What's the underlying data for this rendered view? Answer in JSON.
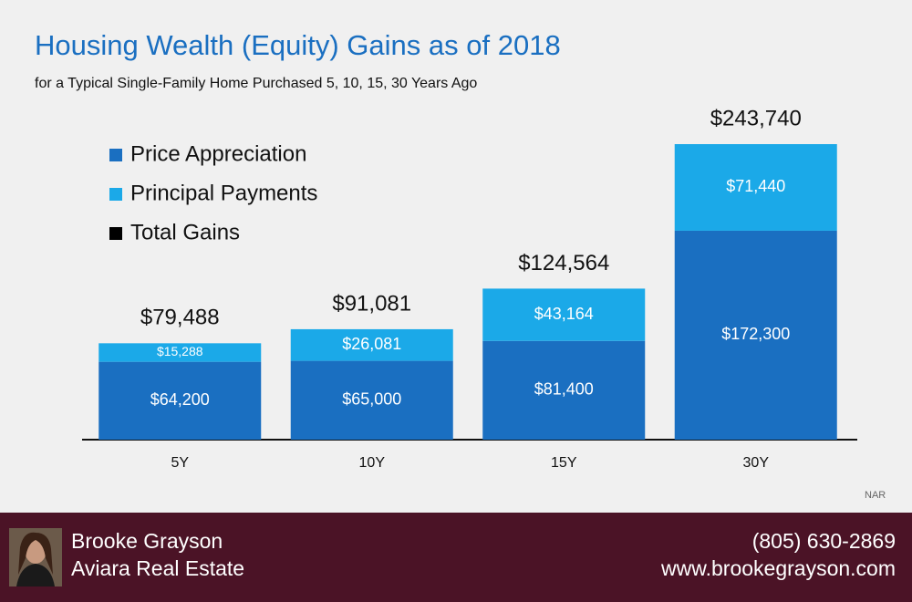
{
  "chart_data": {
    "type": "stacked_bar",
    "title": "Housing Wealth (Equity) Gains as of 2018",
    "subtitle": "for a Typical Single-Family Home Purchased 5, 10, 15, 30 Years Ago",
    "categories": [
      "5Y",
      "10Y",
      "15Y",
      "30Y"
    ],
    "series": [
      {
        "name": "Price Appreciation",
        "color": "#1a6fc1",
        "values": [
          64200,
          65000,
          81400,
          172300
        ],
        "value_labels": [
          "$64,200",
          "$65,000",
          "$81,400",
          "$172,300"
        ]
      },
      {
        "name": "Principal Payments",
        "color": "#1ba9e8",
        "values": [
          15288,
          26081,
          43164,
          71440
        ],
        "value_labels": [
          "$15,288",
          "$26,081",
          "$43,164",
          "$71,440"
        ]
      }
    ],
    "totals": {
      "name": "Total Gains",
      "color": "#000000",
      "values": [
        79488,
        91081,
        124564,
        243740
      ],
      "value_labels": [
        "$79,488",
        "$91,081",
        "$124,564",
        "$243,740"
      ]
    },
    "source": "NAR"
  },
  "footer": {
    "name": "Brooke Grayson",
    "company": "Aviara Real Estate",
    "phone": "(805) 630-2869",
    "website": "www.brookegrayson.com"
  }
}
